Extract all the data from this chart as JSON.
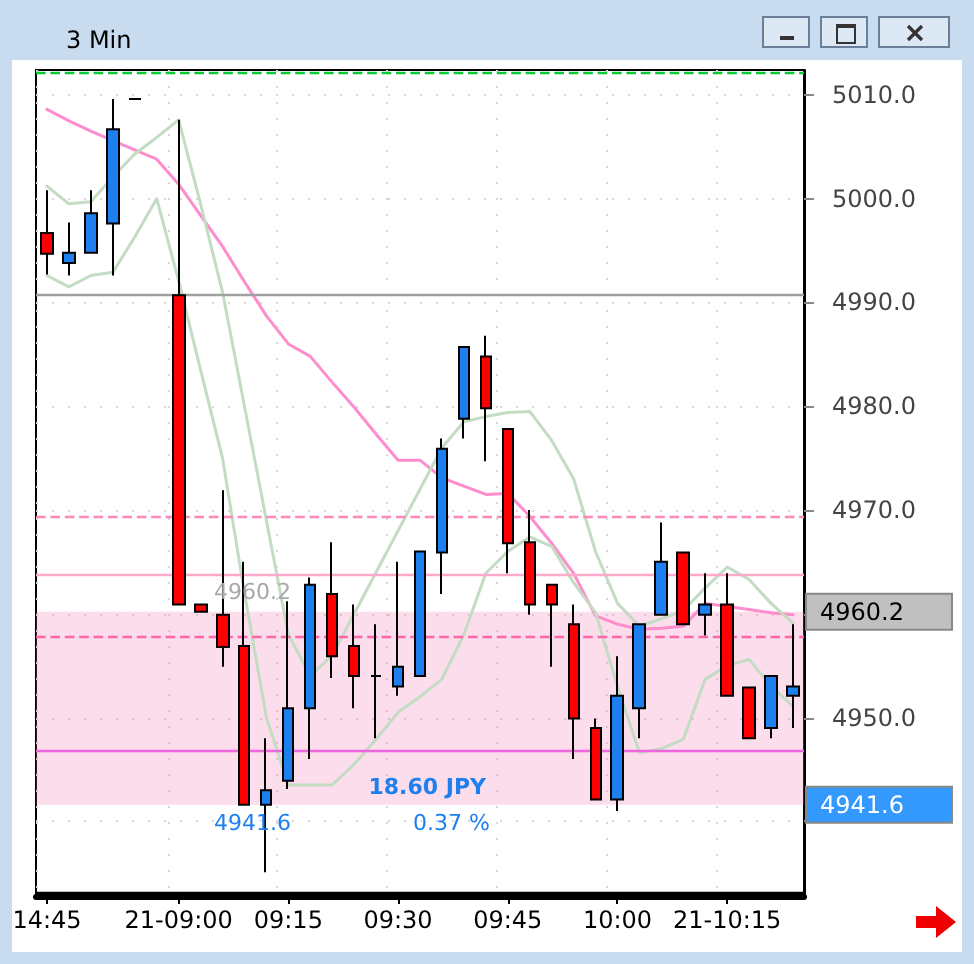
{
  "chart_data": {
    "type": "candlestick",
    "title": "3 Min",
    "categories": [
      "14:45",
      null,
      null,
      null,
      null,
      null,
      "21-09:00",
      null,
      null,
      null,
      null,
      "09:15",
      null,
      null,
      null,
      null,
      "09:30",
      null,
      null,
      null,
      null,
      "09:45",
      null,
      null,
      null,
      null,
      "10:00",
      null,
      null,
      null,
      null,
      "21-10:15",
      null,
      null,
      null
    ],
    "ohlc": [
      [
        4996.7,
        5000.8,
        4992.7,
        4994.7
      ],
      [
        4993.8,
        4997.7,
        4992.6,
        4994.8
      ],
      [
        4994.8,
        5000.8,
        4994.8,
        4998.6
      ],
      [
        4997.6,
        5009.6,
        4992.6,
        5006.7
      ],
      [
        5009.6,
        5009.6,
        5009.6,
        5009.6
      ],
      null,
      [
        4990.7,
        5007.6,
        4960.9,
        4960.9
      ],
      [
        4960.9,
        4960.9,
        4960.2,
        4960.2
      ],
      [
        4959.9,
        4971.9,
        4954.9,
        4956.8
      ],
      [
        4956.9,
        4965.0,
        4941.6,
        4941.6
      ],
      [
        4941.6,
        4948.0,
        4935.1,
        4943.0
      ],
      [
        4943.9,
        4961.2,
        4943.1,
        4950.9
      ],
      [
        4950.9,
        4963.5,
        4946.0,
        4962.8
      ],
      [
        4961.9,
        4966.9,
        4953.8,
        4955.9
      ],
      [
        4956.9,
        4960.9,
        4950.9,
        4954.0
      ],
      [
        4954.0,
        4959.0,
        4948.0,
        4954.0
      ],
      [
        4953.0,
        4965.0,
        4952.1,
        4954.9
      ],
      [
        4954.0,
        4966.0,
        4954.0,
        4966.0
      ],
      [
        4965.9,
        4976.9,
        4961.9,
        4975.9
      ],
      [
        4978.8,
        4985.7,
        4976.9,
        4985.7
      ],
      [
        4984.8,
        4986.8,
        4974.7,
        4979.8
      ],
      [
        4977.8,
        4977.8,
        4963.9,
        4966.8
      ],
      [
        4966.9,
        4970.0,
        4959.9,
        4960.9
      ],
      [
        4962.8,
        4962.8,
        4954.9,
        4960.9
      ],
      [
        4959.0,
        4960.9,
        4946.0,
        4949.9
      ],
      [
        4949.0,
        4949.9,
        4942.1,
        4942.1
      ],
      [
        4942.1,
        4955.9,
        4941.0,
        4952.1
      ],
      [
        4950.9,
        4959.0,
        4948.0,
        4959.0
      ],
      [
        4959.9,
        4968.8,
        4959.9,
        4965.0
      ],
      [
        4965.9,
        4965.9,
        4959.0,
        4959.0
      ],
      [
        4959.9,
        4963.9,
        4957.9,
        4960.9
      ],
      [
        4960.9,
        4963.9,
        4952.1,
        4952.1
      ],
      [
        4952.9,
        4952.9,
        4948.0,
        4948.0
      ],
      [
        4949.0,
        4954.0,
        4948.0,
        4954.0
      ],
      [
        4952.1,
        4959.0,
        4949.0,
        4953.0
      ]
    ],
    "colors": [
      "#ff0000",
      "#1e7fef",
      "#1e7fef",
      "#1e7fef",
      "#000000",
      null,
      "#ff0000",
      "#ff0000",
      "#ff0000",
      "#ff0000",
      "#1e7fef",
      "#1e7fef",
      "#1e7fef",
      "#ff0000",
      "#ff0000",
      "#000000",
      "#1e7fef",
      "#1e7fef",
      "#1e7fef",
      "#1e7fef",
      "#ff0000",
      "#ff0000",
      "#ff0000",
      "#ff0000",
      "#ff0000",
      "#ff0000",
      "#1e7fef",
      "#1e7fef",
      "#1e7fef",
      "#ff0000",
      "#1e7fef",
      "#ff0000",
      "#ff0000",
      "#1e7fef",
      "#1e7fef"
    ],
    "series": [
      {
        "type": "line",
        "color": "#ff8ccc",
        "values": [
          5008.6,
          5007.5,
          5006.5,
          5005.6,
          5004.7,
          5003.8,
          5001.4,
          4998.4,
          4995.4,
          4992,
          4988.7,
          4986,
          4984.8,
          4982.3,
          4979.9,
          4977.3,
          4974.8,
          4974.8,
          4973.1,
          4972.3,
          4971.5,
          4971.6,
          4969.4,
          4966.8,
          4963.9,
          4959.8,
          4959,
          4958.5,
          4958.6,
          4958.8,
          4961,
          4960.7,
          4960.4,
          4960.1,
          4959.9
        ]
      },
      {
        "type": "line",
        "color": "#c3dcc3",
        "values": [
          5001.2,
          4999.5,
          4999.7,
          5002.1,
          5004.3,
          5005.9,
          5007.6,
          4999.5,
          4991,
          4980,
          4969,
          4958,
          4954,
          4956,
          4960,
          4964,
          4968,
          4972,
          4976,
          4978.5,
          4979,
          4979.4,
          4979.5,
          4976.7,
          4973,
          4966,
          4961,
          4958.8,
          4959.5,
          4960.3,
          4962.5,
          4964.5,
          4963.3,
          4961,
          4959.1
        ]
      },
      {
        "type": "line",
        "color": "#c3dcc3",
        "values": [
          4992.6,
          4991.5,
          4992.6,
          4992.9,
          4996.3,
          5000,
          4992.1,
          4983.5,
          4975,
          4962,
          4950,
          4943.5,
          4943.5,
          4943.5,
          4945.5,
          4947.9,
          4950.5,
          4952,
          4953.7,
          4958,
          4963.9,
          4966,
          4967.4,
          4966.5,
          4963,
          4960.1,
          4953,
          4946.6,
          4947,
          4947.9,
          4953.7,
          4955,
          4955.6,
          4953,
          4951.1
        ]
      }
    ],
    "ylim": [
      4932.8,
      5012.4
    ],
    "yticks": [
      {
        "value": 4940,
        "label": null
      },
      {
        "value": 4950,
        "label": "4950.0"
      },
      {
        "value": 4960,
        "label": null
      },
      {
        "value": 4970,
        "label": "4970.0"
      },
      {
        "value": 4980,
        "label": "4980.0"
      },
      {
        "value": 4990,
        "label": "4990.0"
      },
      {
        "value": 5000,
        "label": "5000.0"
      },
      {
        "value": 5010,
        "label": "5010.0"
      }
    ],
    "grid": true,
    "marker": "none",
    "ref_lines": [
      {
        "axis": "y",
        "value": 5012.1,
        "color": "#00cc33",
        "line_style": "dashed"
      },
      {
        "axis": "y",
        "value": 4990.7,
        "color": "#a0a0a0"
      },
      {
        "axis": "y",
        "value": 4969.4,
        "color": "#ff88bb",
        "line_style": "dashed"
      },
      {
        "axis": "y",
        "value": 4963.7,
        "color": "#ffaacc"
      },
      {
        "axis": "y",
        "value": 4957.8,
        "color": "#ff66aa",
        "line_style": "dashed"
      },
      {
        "axis": "y",
        "value": 4946.9,
        "color": "#ee66dd"
      },
      {
        "axis": "y",
        "value": 4933.1,
        "color": "#000000"
      }
    ],
    "bands": [
      {
        "axis": "y",
        "from": 4941.6,
        "to": 4960.2,
        "color": "#ee77b5"
      }
    ],
    "annotations": [
      "4960.2",
      "4941.6",
      {
        "text": "18.60 JPY",
        "y": 4941.6
      },
      {
        "text": "0.37 %",
        "y": 4941.6
      },
      "4960.2",
      "4941.6"
    ]
  }
}
